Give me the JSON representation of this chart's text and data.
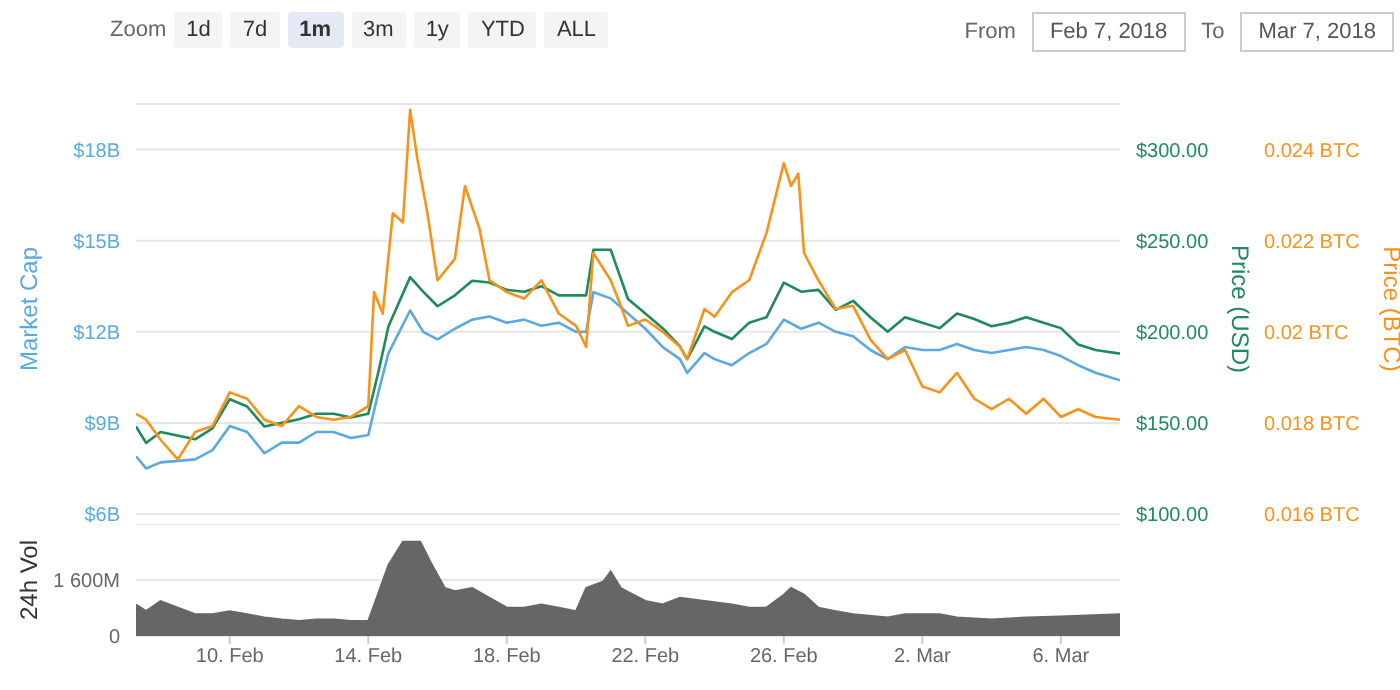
{
  "chart_data": [
    {
      "type": "line",
      "annotations": [
        "Zoom",
        "1d",
        "7d",
        "1m",
        "3m",
        "1y",
        "YTD",
        "ALL",
        "From",
        "Feb 7, 2018",
        "To",
        "Mar 7, 2018"
      ],
      "ylabel": "Market Cap",
      "y2label": "Price (USD)",
      "y3label": "Price (BTC)",
      "grid": "y",
      "tick_labels": "y",
      "xlim": [
        "2018-02-07T07:00",
        "2018-03-07T17:00"
      ],
      "ylim": [
        6,
        19.5
      ],
      "yticks": [
        {
          "value": 6,
          "label": "$6B"
        },
        {
          "value": 9,
          "label": "$9B"
        },
        {
          "value": 12,
          "label": "$12B"
        },
        {
          "value": 15,
          "label": "$15B"
        },
        {
          "value": 18,
          "label": "$18B"
        }
      ],
      "y2lim": [
        100,
        325
      ],
      "y2ticks": [
        {
          "value": 100,
          "label": "$100.00"
        },
        {
          "value": 150,
          "label": "$150.00"
        },
        {
          "value": 200,
          "label": "$200.00"
        },
        {
          "value": 250,
          "label": "$250.00"
        },
        {
          "value": 300,
          "label": "$300.00"
        }
      ],
      "y3lim": [
        0.016,
        0.025
      ],
      "y3ticks": [
        {
          "value": 0.016,
          "label": "0.016 BTC"
        },
        {
          "value": 0.018,
          "label": "0.018 BTC"
        },
        {
          "value": 0.02,
          "label": "0.02 BTC"
        },
        {
          "value": 0.022,
          "label": "0.022 BTC"
        },
        {
          "value": 0.024,
          "label": "0.024 BTC"
        }
      ],
      "x": [
        "2018-02-07T07:00",
        "2018-02-07T14:00",
        "2018-02-08T00:00",
        "2018-02-09T00:00",
        "2018-02-09T12:00",
        "2018-02-10T00:00",
        "2018-02-10T12:00",
        "2018-02-11T00:00",
        "2018-02-11T12:00",
        "2018-02-12T00:00",
        "2018-02-12T12:00",
        "2018-02-13T00:00",
        "2018-02-13T12:00",
        "2018-02-14T00:00",
        "2018-02-14T07:00",
        "2018-02-14T14:00",
        "2018-02-15T05:00",
        "2018-02-15T14:00",
        "2018-02-16T00:00",
        "2018-02-16T12:00",
        "2018-02-17T00:00",
        "2018-02-17T12:00",
        "2018-02-18T00:00",
        "2018-02-18T12:00",
        "2018-02-19T00:00",
        "2018-02-19T12:00",
        "2018-02-20T00:00",
        "2018-02-20T07:00",
        "2018-02-20T12:00",
        "2018-02-21T00:00",
        "2018-02-21T12:00",
        "2018-02-22T00:00",
        "2018-02-22T12:00",
        "2018-02-23T00:00",
        "2018-02-23T05:00",
        "2018-02-23T17:00",
        "2018-02-24T00:00",
        "2018-02-24T12:00",
        "2018-02-25T00:00",
        "2018-02-25T12:00",
        "2018-02-26T00:00",
        "2018-02-26T12:00",
        "2018-02-27T00:00",
        "2018-02-27T12:00",
        "2018-02-28T00:00",
        "2018-02-28T12:00",
        "2018-03-01T00:00",
        "2018-03-01T12:00",
        "2018-03-02T00:00",
        "2018-03-02T12:00",
        "2018-03-03T00:00",
        "2018-03-03T12:00",
        "2018-03-04T00:00",
        "2018-03-04T12:00",
        "2018-03-05T00:00",
        "2018-03-05T12:00",
        "2018-03-06T00:00",
        "2018-03-06T12:00",
        "2018-03-07T00:00",
        "2018-03-07T17:00"
      ],
      "series": [
        {
          "color": "#5aa9e0",
          "values": [
            7.9,
            7.5,
            7.7,
            7.8,
            8.1,
            8.9,
            8.7,
            8.0,
            8.35,
            8.35,
            8.7,
            8.7,
            8.5,
            8.6,
            10.0,
            11.3,
            12.7,
            12.0,
            11.75,
            12.1,
            12.4,
            12.5,
            12.3,
            12.4,
            12.2,
            12.3,
            12.0,
            12.0,
            13.3,
            13.1,
            12.6,
            12.1,
            11.5,
            11.1,
            10.65,
            11.3,
            11.1,
            10.9,
            11.3,
            11.6,
            12.4,
            12.1,
            12.3,
            12.0,
            11.85,
            11.4,
            11.1,
            11.5,
            11.4,
            11.4,
            11.6,
            11.4,
            11.3,
            11.4,
            11.5,
            11.4,
            11.2,
            10.9,
            10.65,
            10.4
          ]
        },
        {
          "color": "#1f8a5b",
          "axis": "y2",
          "values": [
            148,
            139,
            145,
            141,
            147,
            163,
            159,
            148,
            150,
            152,
            155,
            155,
            153,
            155,
            178,
            203,
            230,
            222,
            214,
            220,
            228,
            227,
            223,
            222,
            225,
            220,
            220,
            220,
            245,
            245,
            218,
            210,
            202,
            192,
            185,
            203,
            200,
            196,
            205,
            208,
            227,
            222,
            223,
            212,
            217,
            208,
            200,
            208,
            205,
            202,
            210,
            207,
            203,
            205,
            208,
            205,
            202,
            193,
            190,
            188
          ]
        },
        {
          "color": "#f7931a",
          "axis": "y3",
          "x": [
            "2018-02-07T07:00",
            "2018-02-07T14:00",
            "2018-02-08T00:00",
            "2018-02-08T12:00",
            "2018-02-09T00:00",
            "2018-02-09T12:00",
            "2018-02-10T00:00",
            "2018-02-10T12:00",
            "2018-02-11T00:00",
            "2018-02-11T12:00",
            "2018-02-12T00:00",
            "2018-02-12T12:00",
            "2018-02-13T00:00",
            "2018-02-13T12:00",
            "2018-02-14T00:00",
            "2018-02-14T04:00",
            "2018-02-14T10:00",
            "2018-02-14T17:00",
            "2018-02-15T00:00",
            "2018-02-15T05:00",
            "2018-02-15T10:00",
            "2018-02-15T17:00",
            "2018-02-16T00:00",
            "2018-02-16T12:00",
            "2018-02-16T19:00",
            "2018-02-17T05:00",
            "2018-02-17T12:00",
            "2018-02-18T00:00",
            "2018-02-18T12:00",
            "2018-02-19T00:00",
            "2018-02-19T12:00",
            "2018-02-20T00:00",
            "2018-02-20T07:00",
            "2018-02-20T12:00",
            "2018-02-21T00:00",
            "2018-02-21T07:00",
            "2018-02-21T12:00",
            "2018-02-22T00:00",
            "2018-02-22T12:00",
            "2018-02-23T00:00",
            "2018-02-23T05:00",
            "2018-02-23T17:00",
            "2018-02-24T00:00",
            "2018-02-24T12:00",
            "2018-02-25T00:00",
            "2018-02-25T12:00",
            "2018-02-26T00:00",
            "2018-02-26T05:00",
            "2018-02-26T10:00",
            "2018-02-26T14:00",
            "2018-02-27T00:00",
            "2018-02-27T12:00",
            "2018-02-28T00:00",
            "2018-02-28T12:00",
            "2018-03-01T00:00",
            "2018-03-01T12:00",
            "2018-03-02T00:00",
            "2018-03-02T12:00",
            "2018-03-03T00:00",
            "2018-03-03T12:00",
            "2018-03-04T00:00",
            "2018-03-04T12:00",
            "2018-03-05T00:00",
            "2018-03-05T12:00",
            "2018-03-06T00:00",
            "2018-03-06T12:00",
            "2018-03-07T00:00",
            "2018-03-07T17:00"
          ],
          "values": [
            0.0182,
            0.01807,
            0.01763,
            0.0172,
            0.0178,
            0.01793,
            0.01867,
            0.01853,
            0.01807,
            0.01793,
            0.01837,
            0.01813,
            0.01807,
            0.01813,
            0.01837,
            0.02087,
            0.0204,
            0.0226,
            0.0224,
            0.02487,
            0.0238,
            0.0226,
            0.02113,
            0.0216,
            0.0232,
            0.02227,
            0.02113,
            0.02087,
            0.02073,
            0.02113,
            0.0204,
            0.02013,
            0.01967,
            0.02173,
            0.02113,
            0.02057,
            0.02013,
            0.02027,
            0.02,
            0.01967,
            0.0194,
            0.0205,
            0.02033,
            0.02087,
            0.02113,
            0.02217,
            0.0237,
            0.0232,
            0.02347,
            0.02173,
            0.02113,
            0.0205,
            0.02057,
            0.01983,
            0.0194,
            0.0196,
            0.0188,
            0.01867,
            0.0191,
            0.01853,
            0.0183,
            0.01853,
            0.0182,
            0.01853,
            0.01813,
            0.0183,
            0.01813,
            0.01807
          ]
        }
      ]
    },
    {
      "type": "area",
      "ylabel": "24h Vol",
      "grid": "y",
      "xlim": [
        "2018-02-07T07:00",
        "2018-03-07T17:00"
      ],
      "xticks": [
        {
          "value": "2018-02-10",
          "label": "10. Feb"
        },
        {
          "value": "2018-02-14",
          "label": "14. Feb"
        },
        {
          "value": "2018-02-18",
          "label": "18. Feb"
        },
        {
          "value": "2018-02-22",
          "label": "22. Feb"
        },
        {
          "value": "2018-02-26",
          "label": "26. Feb"
        },
        {
          "value": "2018-03-02",
          "label": "2. Mar"
        },
        {
          "value": "2018-03-06",
          "label": "6. Mar"
        }
      ],
      "ylim": [
        0,
        3200
      ],
      "yticks": [
        0,
        {
          "value": 1600,
          "label": "1 600M"
        }
      ],
      "series": [
        {
          "color": "#666666",
          "x": [
            "2018-02-07T07:00",
            "2018-02-07T14:00",
            "2018-02-08T00:00",
            "2018-02-08T12:00",
            "2018-02-09T00:00",
            "2018-02-09T12:00",
            "2018-02-10T00:00",
            "2018-02-10T12:00",
            "2018-02-11T00:00",
            "2018-02-11T12:00",
            "2018-02-12T00:00",
            "2018-02-12T12:00",
            "2018-02-13T00:00",
            "2018-02-13T12:00",
            "2018-02-14T00:00",
            "2018-02-14T05:00",
            "2018-02-14T14:00",
            "2018-02-15T00:00",
            "2018-02-15T12:00",
            "2018-02-15T19:00",
            "2018-02-16T05:00",
            "2018-02-16T12:00",
            "2018-02-17T00:00",
            "2018-02-17T12:00",
            "2018-02-18T00:00",
            "2018-02-18T12:00",
            "2018-02-19T00:00",
            "2018-02-19T12:00",
            "2018-02-20T00:00",
            "2018-02-20T07:00",
            "2018-02-20T19:00",
            "2018-02-21T00:00",
            "2018-02-21T07:00",
            "2018-02-22T00:00",
            "2018-02-22T12:00",
            "2018-02-23T00:00",
            "2018-02-23T17:00",
            "2018-02-24T12:00",
            "2018-02-25T00:00",
            "2018-02-25T12:00",
            "2018-02-26T00:00",
            "2018-02-26T05:00",
            "2018-02-26T14:00",
            "2018-02-27T00:00",
            "2018-02-27T12:00",
            "2018-02-28T00:00",
            "2018-03-01T00:00",
            "2018-03-01T12:00",
            "2018-03-02T12:00",
            "2018-03-03T00:00",
            "2018-03-04T00:00",
            "2018-03-05T00:00",
            "2018-03-06T00:00",
            "2018-03-07T17:00"
          ],
          "values": [
            900,
            710,
            1000,
            810,
            620,
            620,
            710,
            620,
            530,
            470,
            430,
            470,
            470,
            430,
            430,
            1000,
            2030,
            2690,
            2690,
            2120,
            1370,
            1280,
            1370,
            1090,
            810,
            810,
            900,
            810,
            710,
            1370,
            1560,
            1840,
            1370,
            1000,
            900,
            1090,
            1000,
            900,
            810,
            810,
            1180,
            1370,
            1180,
            810,
            710,
            620,
            530,
            620,
            620,
            530,
            470,
            530,
            560,
            620
          ]
        }
      ]
    }
  ]
}
